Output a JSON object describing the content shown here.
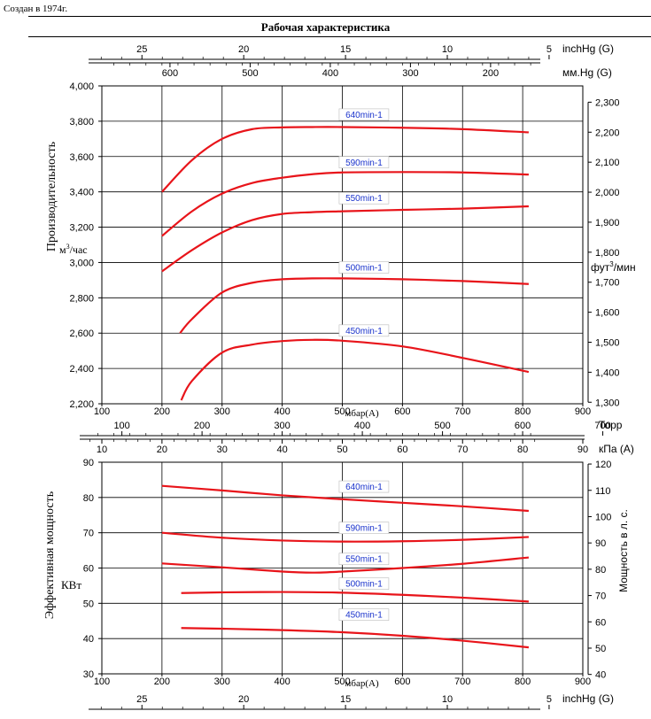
{
  "header": {
    "created_text": "Создан в 1974г.",
    "title": "Рабочая характеристика"
  },
  "colors": {
    "curve": "#e8141a",
    "label_text": "#1a33cc",
    "grid": "#000000"
  },
  "axes": {
    "inchhg_unit": "inchHg (G)",
    "mmhg_unit": "мм.Hg (G)",
    "mbar_unit": "мбар(A)",
    "torr_unit": "Торр",
    "kpa_unit": "кПа (A)",
    "flow_label": "Производительность",
    "flow_unit_base": "м",
    "flow_unit_sup": "3",
    "flow_unit_rest": "/час",
    "flow_right_unit_base": "фут",
    "flow_right_unit_sup": "3",
    "flow_right_unit_rest": "/мин",
    "power_label": "Эффективная мощность",
    "power_unit": "КВт",
    "power_right_label": "Мощность в л. с."
  },
  "chart_data": [
    {
      "type": "line",
      "title": "Рабочая характеристика",
      "xlabel": "мбар(A)",
      "ylabel": "Производительность",
      "x_unit": "мбар(A)",
      "y_unit": "м3/час",
      "xlim": [
        100,
        900
      ],
      "ylim": [
        2200,
        4000
      ],
      "x_ticks": [
        100,
        200,
        300,
        400,
        500,
        600,
        700,
        800,
        900
      ],
      "y_ticks": [
        "2,200",
        "2,400",
        "2,600",
        "2,800",
        "3,000",
        "3,200",
        "3,400",
        "3,600",
        "3,800",
        "4,000"
      ],
      "y_tick_values": [
        2200,
        2400,
        2600,
        2800,
        3000,
        3200,
        3400,
        3600,
        3800,
        4000
      ],
      "right_axis": {
        "unit": "фут3/мин",
        "ticks": [
          "1,300",
          "1,400",
          "1,500",
          "1,600",
          "1,700",
          "1,800",
          "1,900",
          "2,000",
          "2,100",
          "2,200",
          "2,300"
        ],
        "values": [
          1300,
          1400,
          1500,
          1600,
          1700,
          1800,
          1900,
          2000,
          2100,
          2200,
          2300
        ]
      },
      "top_axes": {
        "inchhg": {
          "unit": "inchHg (G)",
          "ticks": [
            "25",
            "20",
            "15",
            "10",
            "5"
          ],
          "values": [
            25,
            20,
            15,
            10,
            5
          ]
        },
        "mmhg": {
          "unit": "мм.Hg (G)",
          "ticks": [
            "600",
            "500",
            "400",
            "300",
            "200"
          ],
          "values": [
            600,
            500,
            400,
            300,
            200
          ]
        }
      },
      "bottom_axes": {
        "torr": {
          "unit": "Торр",
          "ticks": [
            "100",
            "200",
            "300",
            "400",
            "500",
            "600",
            "700"
          ],
          "values": [
            100,
            200,
            300,
            400,
            500,
            600,
            700
          ]
        },
        "kpa": {
          "unit": "кПа (A)",
          "ticks": [
            "10",
            "20",
            "30",
            "40",
            "50",
            "60",
            "70",
            "80",
            "90"
          ],
          "values": [
            10,
            20,
            30,
            40,
            50,
            60,
            70,
            80,
            90
          ]
        }
      },
      "grid": true,
      "series": [
        {
          "name": "640min-1",
          "label_at": [
            480,
            3830
          ],
          "x": [
            200,
            250,
            300,
            350,
            400,
            450,
            500,
            600,
            700,
            810
          ],
          "y": [
            3400,
            3580,
            3700,
            3755,
            3765,
            3767,
            3767,
            3763,
            3755,
            3737
          ]
        },
        {
          "name": "590min-1",
          "label_at": [
            480,
            3560
          ],
          "x": [
            200,
            250,
            300,
            350,
            400,
            450,
            500,
            600,
            700,
            810
          ],
          "y": [
            3150,
            3290,
            3390,
            3450,
            3480,
            3500,
            3510,
            3512,
            3510,
            3498
          ]
        },
        {
          "name": "550min-1",
          "label_at": [
            480,
            3357
          ],
          "x": [
            200,
            250,
            300,
            350,
            400,
            450,
            500,
            600,
            700,
            810
          ],
          "y": [
            2950,
            3070,
            3170,
            3240,
            3275,
            3285,
            3290,
            3298,
            3305,
            3318
          ]
        },
        {
          "name": "500min-1",
          "label_at": [
            480,
            2965
          ],
          "x": [
            230,
            250,
            300,
            350,
            400,
            450,
            500,
            600,
            700,
            810
          ],
          "y": [
            2600,
            2680,
            2830,
            2885,
            2905,
            2910,
            2910,
            2905,
            2895,
            2878
          ]
        },
        {
          "name": "450min-1",
          "label_at": [
            480,
            2607
          ],
          "x": [
            232,
            250,
            300,
            350,
            400,
            450,
            500,
            600,
            700,
            810
          ],
          "y": [
            2220,
            2330,
            2490,
            2535,
            2555,
            2562,
            2557,
            2525,
            2460,
            2380
          ]
        }
      ]
    },
    {
      "type": "line",
      "xlabel": "мбар(A)",
      "ylabel": "Эффективная мощность",
      "x_unit": "мбар(A)",
      "y_unit": "КВт",
      "xlim": [
        100,
        900
      ],
      "ylim": [
        30,
        90
      ],
      "x_ticks": [
        100,
        200,
        300,
        400,
        500,
        600,
        700,
        800,
        900
      ],
      "y_ticks": [
        "30",
        "40",
        "50",
        "60",
        "70",
        "80",
        "90"
      ],
      "y_tick_values": [
        30,
        40,
        50,
        60,
        70,
        80,
        90
      ],
      "right_axis": {
        "unit": "Мощность в л. с.",
        "ticks": [
          "40",
          "50",
          "60",
          "70",
          "80",
          "90",
          "100",
          "110",
          "120"
        ],
        "values": [
          40,
          50,
          60,
          70,
          80,
          90,
          100,
          110,
          120
        ]
      },
      "bottom_axes": {
        "inchhg": {
          "unit": "inchHg (G)",
          "ticks": [
            "25",
            "20",
            "15",
            "10",
            "5"
          ],
          "values": [
            25,
            20,
            15,
            10,
            5
          ]
        }
      },
      "grid": true,
      "series": [
        {
          "name": "640min-1",
          "label_at": [
            480,
            82.7
          ],
          "x": [
            200,
            300,
            400,
            500,
            600,
            700,
            810
          ],
          "y": [
            83.3,
            82.0,
            80.6,
            79.5,
            78.5,
            77.5,
            76.2
          ]
        },
        {
          "name": "590min-1",
          "label_at": [
            480,
            71.0
          ],
          "x": [
            200,
            300,
            400,
            500,
            600,
            700,
            810
          ],
          "y": [
            70.0,
            68.6,
            67.8,
            67.5,
            67.6,
            68.0,
            68.8
          ]
        },
        {
          "name": "550min-1",
          "label_at": [
            480,
            62.2
          ],
          "x": [
            200,
            300,
            400,
            450,
            500,
            600,
            700,
            810
          ],
          "y": [
            61.3,
            60.2,
            59.0,
            58.7,
            59.0,
            60.0,
            61.2,
            63.0
          ]
        },
        {
          "name": "500min-1",
          "label_at": [
            480,
            55.2
          ],
          "x": [
            232,
            300,
            400,
            500,
            600,
            700,
            810
          ],
          "y": [
            52.9,
            53.1,
            53.2,
            53.0,
            52.4,
            51.6,
            50.5
          ]
        },
        {
          "name": "450min-1",
          "label_at": [
            480,
            46.4
          ],
          "x": [
            232,
            300,
            400,
            500,
            600,
            700,
            810
          ],
          "y": [
            43.0,
            42.8,
            42.4,
            41.8,
            40.8,
            39.4,
            37.5
          ]
        }
      ]
    }
  ]
}
